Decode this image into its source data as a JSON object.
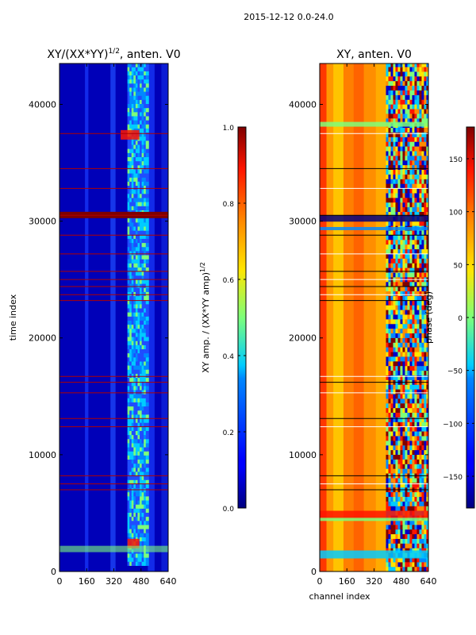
{
  "figure_title": "2015-12-12 0.0-24.0",
  "chart_data": [
    {
      "type": "heatmap",
      "title": "XY/(XX*YY)^{1/2}, anten. V0",
      "title_main": "XY/(XX*YY)",
      "title_sup": "1/2",
      "title_tail": ", anten. V0",
      "xlabel": "",
      "ylabel": "time index",
      "xlim": [
        0,
        640
      ],
      "ylim": [
        0,
        43500
      ],
      "x_ticks": [
        "0",
        "160",
        "320",
        "480",
        "640"
      ],
      "y_ticks": [
        "0",
        "10000",
        "20000",
        "30000",
        "40000"
      ],
      "x_tick_values": [
        0,
        160,
        320,
        480,
        640
      ],
      "y_tick_values": [
        0,
        10000,
        20000,
        30000,
        40000
      ],
      "colormap": "jet",
      "colorbar": {
        "label": "XY amp. / (XX*YY amp)^{1/2}",
        "label_main": "XY amp. / (XX*YY amp)",
        "label_sup": "1/2",
        "range": [
          0.0,
          1.0
        ],
        "ticks": [
          "0.0",
          "0.2",
          "0.4",
          "0.6",
          "0.8",
          "1.0"
        ],
        "tick_values": [
          0.0,
          0.2,
          0.4,
          0.6,
          0.8,
          1.0
        ]
      },
      "flagged_rows": [
        30500,
        37500,
        34500,
        32800,
        28800,
        27200,
        25700,
        25000,
        24400,
        23700,
        23200,
        16700,
        16200,
        15300,
        13100,
        12400,
        8200,
        7500,
        7000
      ]
    },
    {
      "type": "heatmap",
      "title": "XY, anten. V0",
      "xlabel": "channel index",
      "ylabel": "",
      "xlim": [
        0,
        640
      ],
      "ylim": [
        0,
        43500
      ],
      "x_ticks": [
        "0",
        "160",
        "320",
        "480",
        "640"
      ],
      "y_ticks": [
        "0",
        "10000",
        "20000",
        "30000",
        "40000"
      ],
      "x_tick_values": [
        0,
        160,
        320,
        480,
        640
      ],
      "y_tick_values": [
        0,
        10000,
        20000,
        30000,
        40000
      ],
      "colormap": "jet",
      "colorbar": {
        "label": "phase (deg)",
        "range": [
          -180,
          180
        ],
        "ticks": [
          "−150",
          "−100",
          "−50",
          "0",
          "50",
          "100",
          "150"
        ],
        "tick_values": [
          -150,
          -100,
          -50,
          0,
          50,
          100,
          150
        ]
      },
      "flagged_rows": [
        30500,
        37500,
        34500,
        32800,
        28800,
        27200,
        25700,
        25000,
        24400,
        23700,
        23200,
        16700,
        16200,
        15300,
        13100,
        12400,
        8200,
        7500,
        7000
      ]
    }
  ]
}
